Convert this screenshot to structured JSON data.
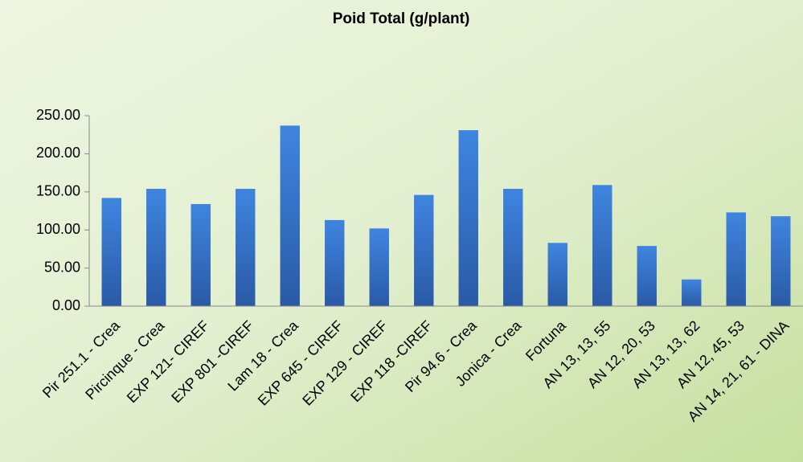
{
  "chart_data": {
    "type": "bar",
    "title": "Poid Total (g/plant)",
    "categories": [
      "Pir 251.1 - Crea",
      "Pircinque - Crea",
      "EXP 121- CIREF",
      "EXP 801 -CIREF",
      "Lam 18 - Crea",
      "EXP 645 - CIREF",
      "EXP 129 - CIREF",
      "EXP 118 -CIREF",
      "Pir 94.6 - Crea",
      "Jonica - Crea",
      "Fortuna",
      "AN 13, 13, 55",
      "AN 12, 20, 53",
      "AN 13, 13, 62",
      "AN 12, 45, 53",
      "AN 14, 21, 61 - DINA"
    ],
    "values": [
      142,
      154,
      134,
      154,
      237,
      113,
      102,
      146,
      231,
      154,
      83,
      159,
      79,
      35,
      123,
      118
    ],
    "color": "#3a7bd5",
    "ylim": [
      0,
      250
    ],
    "yticks": [
      {
        "value": 0,
        "label": "0.00"
      },
      {
        "value": 50,
        "label": "50.00"
      },
      {
        "value": 100,
        "label": "100.00"
      },
      {
        "value": 150,
        "label": "150.00"
      },
      {
        "value": 200,
        "label": "200.00"
      },
      {
        "value": 250,
        "label": "250.00"
      }
    ],
    "grid": false
  }
}
